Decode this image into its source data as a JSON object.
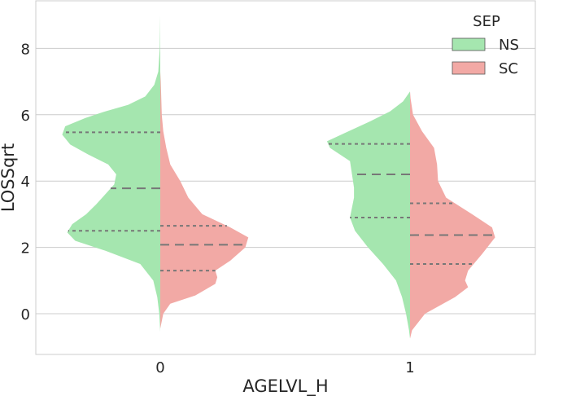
{
  "chart_data": {
    "type": "violin",
    "split": true,
    "xlabel": "AGELVL_H",
    "ylabel": "LOSSqrt",
    "categories": [
      "0",
      "1"
    ],
    "yticks": [
      0,
      2,
      4,
      6,
      8
    ],
    "ytick_labels": [
      "0",
      "2",
      "4",
      "6",
      "8"
    ],
    "ylim": [
      -1.2,
      9.4
    ],
    "grid": "horizontal",
    "legend": {
      "title": "SEP",
      "placement": "top-right",
      "entries": [
        {
          "label": "NS",
          "color": "#a5e6af"
        },
        {
          "label": "SC",
          "color": "#f2a9a5"
        }
      ]
    },
    "series": [
      {
        "name": "NS",
        "side": "left",
        "color": "#a5e6af",
        "violins": [
          {
            "category": "0",
            "profile": [
              [
                -0.55,
                0
              ],
              [
                0,
                0.01
              ],
              [
                0.5,
                0.03
              ],
              [
                1.0,
                0.07
              ],
              [
                1.5,
                0.2
              ],
              [
                1.9,
                0.55
              ],
              [
                2.2,
                0.85
              ],
              [
                2.45,
                0.93
              ],
              [
                2.7,
                0.88
              ],
              [
                3.0,
                0.74
              ],
              [
                3.3,
                0.64
              ],
              [
                3.6,
                0.55
              ],
              [
                3.9,
                0.46
              ],
              [
                4.2,
                0.44
              ],
              [
                4.5,
                0.52
              ],
              [
                4.8,
                0.72
              ],
              [
                5.1,
                0.9
              ],
              [
                5.4,
                0.98
              ],
              [
                5.65,
                0.95
              ],
              [
                5.9,
                0.75
              ],
              [
                6.1,
                0.55
              ],
              [
                6.3,
                0.32
              ],
              [
                6.55,
                0.15
              ],
              [
                6.9,
                0.06
              ],
              [
                7.3,
                0.02
              ],
              [
                8.0,
                0.005
              ],
              [
                9.0,
                0
              ]
            ],
            "quartiles": [
              2.5,
              3.78,
              5.47
            ]
          },
          {
            "category": "1",
            "profile": [
              [
                -0.75,
                0
              ],
              [
                -0.5,
                0.01
              ],
              [
                0,
                0.04
              ],
              [
                0.5,
                0.08
              ],
              [
                1.0,
                0.14
              ],
              [
                1.5,
                0.27
              ],
              [
                2.0,
                0.42
              ],
              [
                2.5,
                0.55
              ],
              [
                2.9,
                0.6
              ],
              [
                3.2,
                0.58
              ],
              [
                3.5,
                0.56
              ],
              [
                3.8,
                0.56
              ],
              [
                4.2,
                0.58
              ],
              [
                4.6,
                0.6
              ],
              [
                5.0,
                0.8
              ],
              [
                5.2,
                0.83
              ],
              [
                5.45,
                0.65
              ],
              [
                5.8,
                0.4
              ],
              [
                6.1,
                0.2
              ],
              [
                6.4,
                0.07
              ],
              [
                6.7,
                0
              ]
            ],
            "quartiles": [
              2.9,
              4.2,
              5.12
            ]
          }
        ]
      },
      {
        "name": "SC",
        "side": "right",
        "color": "#f2a9a5",
        "violins": [
          {
            "category": "0",
            "profile": [
              [
                -0.45,
                0
              ],
              [
                0,
                0.03
              ],
              [
                0.3,
                0.1
              ],
              [
                0.55,
                0.35
              ],
              [
                0.9,
                0.55
              ],
              [
                1.1,
                0.57
              ],
              [
                1.3,
                0.55
              ],
              [
                1.6,
                0.7
              ],
              [
                2.0,
                0.85
              ],
              [
                2.3,
                0.88
              ],
              [
                2.6,
                0.7
              ],
              [
                3.0,
                0.42
              ],
              [
                3.5,
                0.28
              ],
              [
                4.0,
                0.2
              ],
              [
                4.5,
                0.1
              ],
              [
                5.0,
                0.06
              ],
              [
                5.5,
                0.03
              ],
              [
                6.0,
                0.015
              ],
              [
                7.0,
                0.005
              ],
              [
                7.3,
                0
              ]
            ],
            "quartiles": [
              1.3,
              2.08,
              2.65
            ]
          },
          {
            "category": "1",
            "profile": [
              [
                -0.75,
                0
              ],
              [
                -0.5,
                0.02
              ],
              [
                0,
                0.15
              ],
              [
                0.5,
                0.45
              ],
              [
                0.8,
                0.58
              ],
              [
                1.0,
                0.55
              ],
              [
                1.3,
                0.58
              ],
              [
                1.8,
                0.72
              ],
              [
                2.3,
                0.85
              ],
              [
                2.6,
                0.82
              ],
              [
                3.0,
                0.62
              ],
              [
                3.5,
                0.36
              ],
              [
                4.0,
                0.28
              ],
              [
                4.5,
                0.27
              ],
              [
                5.0,
                0.24
              ],
              [
                5.5,
                0.12
              ],
              [
                6.0,
                0.03
              ],
              [
                6.5,
                0.005
              ],
              [
                6.7,
                0
              ]
            ],
            "quartiles": [
              1.5,
              2.37,
              3.33
            ]
          }
        ]
      }
    ]
  }
}
